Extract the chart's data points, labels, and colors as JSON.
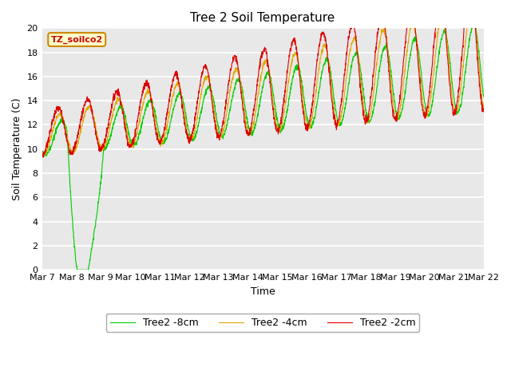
{
  "title": "Tree 2 Soil Temperature",
  "ylabel": "Soil Temperature (C)",
  "xlabel": "Time",
  "ylim": [
    0,
    20
  ],
  "yticks": [
    0,
    2,
    4,
    6,
    8,
    10,
    12,
    14,
    16,
    18,
    20
  ],
  "bg_color": "#e8e8e8",
  "fig_color": "#ffffff",
  "legend_label": "TZ_soilco2",
  "series": [
    {
      "label": "Tree2 -2cm",
      "color": "#dd0000"
    },
    {
      "label": "Tree2 -4cm",
      "color": "#ddaa00"
    },
    {
      "label": "Tree2 -8cm",
      "color": "#00cc00"
    }
  ],
  "x_tick_labels": [
    "Mar 7",
    "Mar 8",
    "Mar 9",
    "Mar 10",
    "Mar 11",
    "Mar 12",
    "Mar 13",
    "Mar 14",
    "Mar 15",
    "Mar 16",
    "Mar 17",
    "Mar 18",
    "Mar 19",
    "Mar 20",
    "Mar 21",
    "Mar 22"
  ],
  "n_days": 16,
  "title_fontsize": 11,
  "axis_label_fontsize": 9,
  "tick_fontsize": 8
}
